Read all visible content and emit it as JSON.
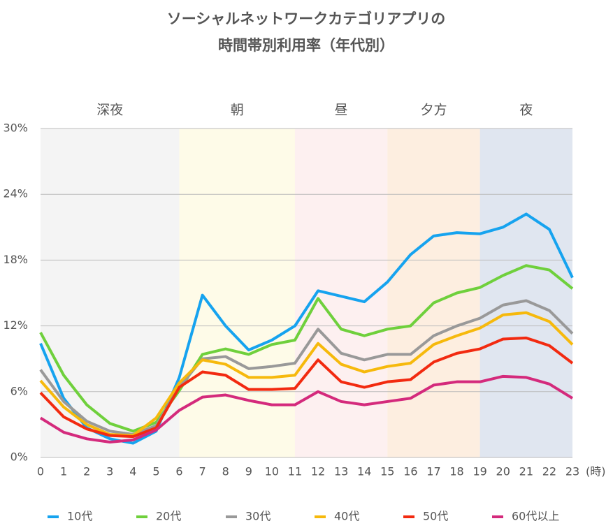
{
  "chart_data": {
    "type": "line",
    "title": [
      "ソーシャルネットワークカテゴリアプリの",
      "時間帯別利用率（年代別）"
    ],
    "x_unit": "(時)",
    "x": [
      0,
      1,
      2,
      3,
      4,
      5,
      6,
      7,
      8,
      9,
      10,
      11,
      12,
      13,
      14,
      15,
      16,
      17,
      18,
      19,
      20,
      21,
      22,
      23
    ],
    "xlim": [
      0,
      23
    ],
    "xticks": [
      0,
      1,
      2,
      3,
      4,
      5,
      6,
      7,
      8,
      9,
      10,
      11,
      12,
      13,
      14,
      15,
      16,
      17,
      18,
      19,
      20,
      21,
      22,
      23
    ],
    "ylim": [
      0,
      30
    ],
    "yticks": [
      {
        "value": 0,
        "label": "0%"
      },
      {
        "value": 6,
        "label": "6%"
      },
      {
        "value": 12,
        "label": "12%"
      },
      {
        "value": 18,
        "label": "18%"
      },
      {
        "value": 24,
        "label": "24%"
      },
      {
        "value": 30,
        "label": "30%"
      }
    ],
    "grid": true,
    "bands": [
      {
        "label": "深夜",
        "start": 0,
        "end": 6,
        "color": "#f4f4f4"
      },
      {
        "label": "朝",
        "start": 6,
        "end": 11,
        "color": "#fefbe8"
      },
      {
        "label": "昼",
        "start": 11,
        "end": 15,
        "color": "#fdf0f0"
      },
      {
        "label": "夕方",
        "start": 15,
        "end": 19,
        "color": "#fdeee0"
      },
      {
        "label": "夜",
        "start": 19,
        "end": 23,
        "color": "#e0e6f0"
      }
    ],
    "legend": "bottom",
    "series": [
      {
        "name": "10代",
        "color": "#16a3ef",
        "values": [
          10.4,
          5.4,
          2.7,
          1.7,
          1.3,
          2.4,
          7.3,
          14.8,
          12.0,
          9.8,
          10.7,
          12.0,
          15.2,
          14.7,
          14.2,
          16.0,
          18.5,
          20.2,
          20.5,
          20.4,
          21.0,
          22.2,
          20.8,
          16.4
        ]
      },
      {
        "name": "20代",
        "color": "#6fd03c",
        "values": [
          11.4,
          7.5,
          4.8,
          3.1,
          2.4,
          3.2,
          6.1,
          9.4,
          9.9,
          9.4,
          10.3,
          10.7,
          14.5,
          11.7,
          11.1,
          11.7,
          12.0,
          14.1,
          15.0,
          15.5,
          16.6,
          17.5,
          17.1,
          15.4
        ]
      },
      {
        "name": "30代",
        "color": "#999999",
        "values": [
          8.0,
          5.1,
          3.3,
          2.4,
          2.1,
          2.9,
          6.4,
          9.0,
          9.2,
          8.1,
          8.3,
          8.6,
          11.7,
          9.5,
          8.9,
          9.4,
          9.4,
          11.1,
          12.0,
          12.7,
          13.9,
          14.3,
          13.4,
          11.3
        ]
      },
      {
        "name": "40代",
        "color": "#f6b90c",
        "values": [
          7.0,
          4.6,
          3.0,
          2.1,
          2.0,
          3.6,
          6.8,
          8.9,
          8.5,
          7.3,
          7.3,
          7.5,
          10.4,
          8.5,
          7.8,
          8.3,
          8.6,
          10.3,
          11.1,
          11.8,
          13.0,
          13.2,
          12.4,
          10.3
        ]
      },
      {
        "name": "50代",
        "color": "#f22a10",
        "values": [
          5.9,
          3.7,
          2.6,
          2.0,
          1.9,
          2.7,
          6.4,
          7.8,
          7.5,
          6.2,
          6.2,
          6.3,
          8.9,
          6.9,
          6.4,
          6.9,
          7.1,
          8.7,
          9.5,
          9.9,
          10.8,
          10.9,
          10.2,
          8.6
        ]
      },
      {
        "name": "60代以上",
        "color": "#d42a7c",
        "values": [
          3.6,
          2.3,
          1.7,
          1.4,
          1.6,
          2.5,
          4.3,
          5.5,
          5.7,
          5.2,
          4.8,
          4.8,
          6.0,
          5.1,
          4.8,
          5.1,
          5.4,
          6.6,
          6.9,
          6.9,
          7.4,
          7.3,
          6.7,
          5.4
        ]
      }
    ]
  }
}
